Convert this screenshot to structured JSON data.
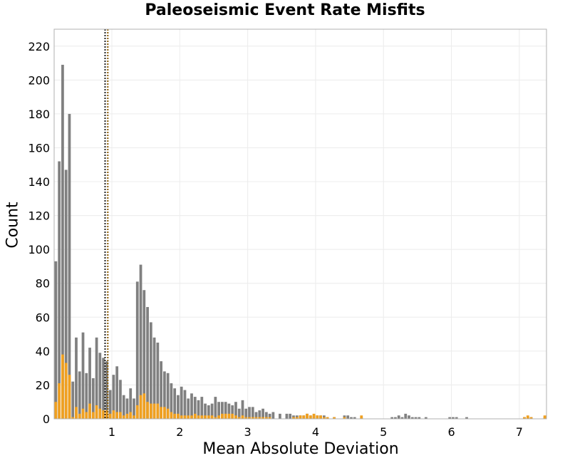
{
  "chart_data": {
    "type": "bar",
    "title": "Paleoseismic Event Rate Misfits",
    "xlabel": "Mean Absolute Deviation",
    "ylabel": "Count",
    "xlim": [
      0.15,
      7.4
    ],
    "ylim": [
      0,
      230
    ],
    "xticks": [
      "1",
      "2",
      "3",
      "4",
      "5",
      "6",
      "7"
    ],
    "yticks": [
      "0",
      "20",
      "40",
      "60",
      "80",
      "100",
      "120",
      "140",
      "160",
      "180",
      "200",
      "220"
    ],
    "grid": true,
    "bin_width": 0.05,
    "reference_lines": [
      {
        "x": 0.9,
        "color": "#222222",
        "style": "dotted"
      },
      {
        "x": 0.94,
        "color": "#8a5a00",
        "style": "dotted"
      }
    ],
    "series": [
      {
        "color": "#808080",
        "points": [
          [
            0.175,
            93
          ],
          [
            0.225,
            152
          ],
          [
            0.275,
            209
          ],
          [
            0.325,
            147
          ],
          [
            0.375,
            180
          ],
          [
            0.425,
            22
          ],
          [
            0.475,
            48
          ],
          [
            0.525,
            28
          ],
          [
            0.575,
            51
          ],
          [
            0.625,
            27
          ],
          [
            0.675,
            42
          ],
          [
            0.725,
            24
          ],
          [
            0.775,
            48
          ],
          [
            0.825,
            39
          ],
          [
            0.875,
            36
          ],
          [
            0.925,
            34
          ],
          [
            0.975,
            17
          ],
          [
            1.025,
            26
          ],
          [
            1.075,
            31
          ],
          [
            1.125,
            23
          ],
          [
            1.175,
            14
          ],
          [
            1.225,
            12
          ],
          [
            1.275,
            18
          ],
          [
            1.325,
            12
          ],
          [
            1.375,
            81
          ],
          [
            1.425,
            91
          ],
          [
            1.475,
            76
          ],
          [
            1.525,
            66
          ],
          [
            1.575,
            57
          ],
          [
            1.625,
            48
          ],
          [
            1.675,
            45
          ],
          [
            1.725,
            34
          ],
          [
            1.775,
            28
          ],
          [
            1.825,
            27
          ],
          [
            1.875,
            21
          ],
          [
            1.925,
            18
          ],
          [
            1.975,
            14
          ],
          [
            2.025,
            19
          ],
          [
            2.075,
            17
          ],
          [
            2.125,
            12
          ],
          [
            2.175,
            15
          ],
          [
            2.225,
            13
          ],
          [
            2.275,
            11
          ],
          [
            2.325,
            13
          ],
          [
            2.375,
            9
          ],
          [
            2.425,
            8
          ],
          [
            2.475,
            9
          ],
          [
            2.525,
            13
          ],
          [
            2.575,
            10
          ],
          [
            2.625,
            10
          ],
          [
            2.675,
            10
          ],
          [
            2.725,
            9
          ],
          [
            2.775,
            8
          ],
          [
            2.825,
            10
          ],
          [
            2.875,
            6
          ],
          [
            2.925,
            11
          ],
          [
            2.975,
            6
          ],
          [
            3.025,
            7
          ],
          [
            3.075,
            7
          ],
          [
            3.125,
            4
          ],
          [
            3.175,
            5
          ],
          [
            3.225,
            6
          ],
          [
            3.275,
            4
          ],
          [
            3.325,
            3
          ],
          [
            3.375,
            4
          ],
          [
            3.475,
            3
          ],
          [
            3.575,
            3
          ],
          [
            3.625,
            3
          ],
          [
            3.675,
            2
          ],
          [
            3.725,
            2
          ],
          [
            3.775,
            2
          ],
          [
            3.825,
            2
          ],
          [
            3.875,
            3
          ],
          [
            3.925,
            2
          ],
          [
            3.975,
            2
          ],
          [
            4.025,
            2
          ],
          [
            4.075,
            2
          ],
          [
            4.125,
            2
          ],
          [
            4.175,
            1
          ],
          [
            4.275,
            1
          ],
          [
            4.425,
            2
          ],
          [
            4.475,
            2
          ],
          [
            4.525,
            1
          ],
          [
            4.575,
            1
          ],
          [
            4.675,
            1
          ],
          [
            5.125,
            1
          ],
          [
            5.175,
            1
          ],
          [
            5.225,
            2
          ],
          [
            5.275,
            1
          ],
          [
            5.325,
            3
          ],
          [
            5.375,
            2
          ],
          [
            5.425,
            1
          ],
          [
            5.475,
            1
          ],
          [
            5.525,
            1
          ],
          [
            5.625,
            1
          ],
          [
            5.975,
            1
          ],
          [
            6.025,
            1
          ],
          [
            6.075,
            1
          ],
          [
            6.225,
            1
          ],
          [
            7.075,
            1
          ],
          [
            7.125,
            1
          ],
          [
            7.175,
            1
          ],
          [
            7.375,
            1
          ]
        ]
      },
      {
        "color": "#f0a020",
        "points": [
          [
            0.175,
            10
          ],
          [
            0.225,
            21
          ],
          [
            0.275,
            38
          ],
          [
            0.325,
            33
          ],
          [
            0.375,
            26
          ],
          [
            0.425,
            1
          ],
          [
            0.475,
            7
          ],
          [
            0.525,
            3
          ],
          [
            0.575,
            6
          ],
          [
            0.625,
            4
          ],
          [
            0.675,
            9
          ],
          [
            0.725,
            4
          ],
          [
            0.775,
            8
          ],
          [
            0.825,
            6
          ],
          [
            0.875,
            5
          ],
          [
            0.925,
            5
          ],
          [
            0.975,
            3
          ],
          [
            1.025,
            5
          ],
          [
            1.075,
            4
          ],
          [
            1.125,
            4
          ],
          [
            1.175,
            2
          ],
          [
            1.225,
            3
          ],
          [
            1.275,
            4
          ],
          [
            1.325,
            2
          ],
          [
            1.375,
            8
          ],
          [
            1.425,
            14
          ],
          [
            1.475,
            15
          ],
          [
            1.525,
            10
          ],
          [
            1.575,
            9
          ],
          [
            1.625,
            9
          ],
          [
            1.675,
            9
          ],
          [
            1.725,
            7
          ],
          [
            1.775,
            7
          ],
          [
            1.825,
            6
          ],
          [
            1.875,
            4
          ],
          [
            1.925,
            3
          ],
          [
            1.975,
            3
          ],
          [
            2.025,
            2
          ],
          [
            2.075,
            2
          ],
          [
            2.125,
            2
          ],
          [
            2.175,
            2
          ],
          [
            2.225,
            3
          ],
          [
            2.275,
            2
          ],
          [
            2.325,
            2
          ],
          [
            2.375,
            2
          ],
          [
            2.425,
            2
          ],
          [
            2.475,
            2
          ],
          [
            2.525,
            1
          ],
          [
            2.575,
            2
          ],
          [
            2.625,
            3
          ],
          [
            2.675,
            3
          ],
          [
            2.725,
            3
          ],
          [
            2.775,
            3
          ],
          [
            2.825,
            2
          ],
          [
            2.875,
            1
          ],
          [
            2.925,
            2
          ],
          [
            2.975,
            1
          ],
          [
            3.025,
            1
          ],
          [
            3.075,
            1
          ],
          [
            3.125,
            1
          ],
          [
            3.175,
            1
          ],
          [
            3.225,
            1
          ],
          [
            3.275,
            1
          ],
          [
            3.325,
            1
          ],
          [
            3.675,
            1
          ],
          [
            3.725,
            1
          ],
          [
            3.775,
            2
          ],
          [
            3.825,
            2
          ],
          [
            3.875,
            3
          ],
          [
            3.925,
            2
          ],
          [
            3.975,
            3
          ],
          [
            4.025,
            2
          ],
          [
            4.075,
            2
          ],
          [
            4.125,
            1
          ],
          [
            4.175,
            1
          ],
          [
            4.275,
            1
          ],
          [
            4.425,
            1
          ],
          [
            4.675,
            2
          ],
          [
            7.075,
            1
          ],
          [
            7.125,
            2
          ],
          [
            7.175,
            1
          ],
          [
            7.375,
            2
          ]
        ]
      }
    ]
  }
}
